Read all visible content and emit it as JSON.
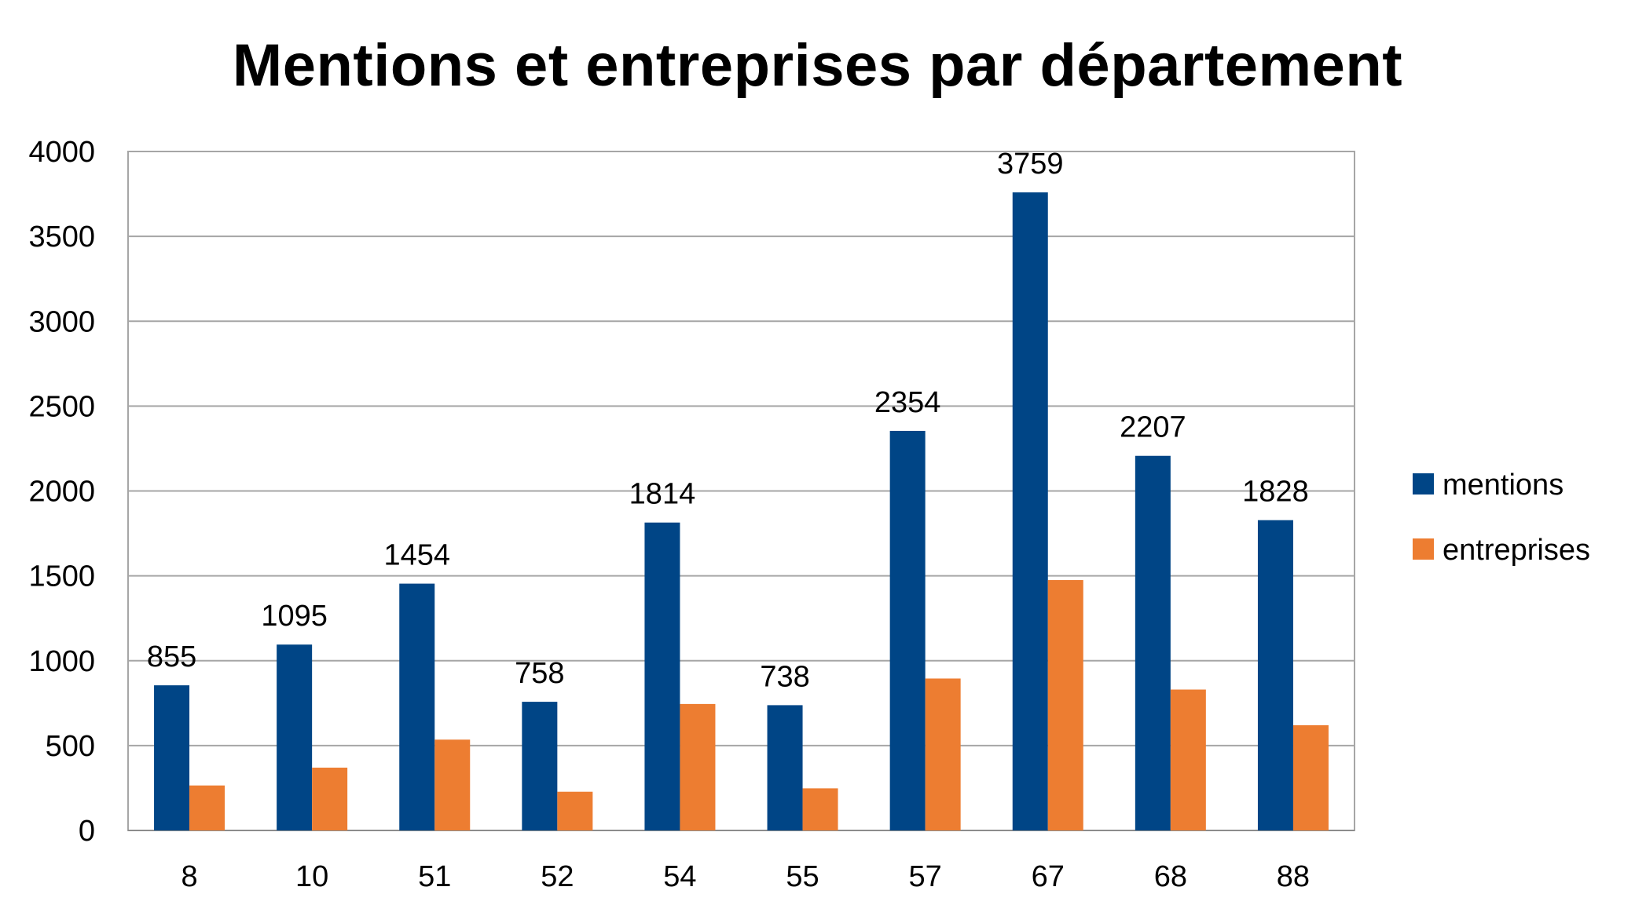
{
  "chart_data": {
    "type": "bar",
    "title": "Mentions et entreprises par département",
    "xlabel": "",
    "ylabel": "",
    "categories": [
      "8",
      "10",
      "51",
      "52",
      "54",
      "55",
      "57",
      "67",
      "68",
      "88"
    ],
    "series": [
      {
        "name": "mentions",
        "color": "#004586",
        "values": [
          855,
          1095,
          1454,
          758,
          1814,
          738,
          2354,
          3759,
          2207,
          1828
        ],
        "data_labels": [
          "855",
          "1095",
          "1454",
          "758",
          "1814",
          "738",
          "2354",
          "3759",
          "2207",
          "1828"
        ]
      },
      {
        "name": "entreprises",
        "color": "#ED7D31",
        "values": [
          265,
          370,
          535,
          228,
          745,
          248,
          895,
          1475,
          830,
          620
        ]
      }
    ],
    "ylim": [
      0,
      4000
    ],
    "yticks": [
      0,
      500,
      1000,
      1500,
      2000,
      2500,
      3000,
      3500,
      4000
    ],
    "ytick_labels": [
      "0",
      "500",
      "1000",
      "1500",
      "2000",
      "2500",
      "3000",
      "3500",
      "4000"
    ],
    "grid": true,
    "legend_position": "right"
  }
}
